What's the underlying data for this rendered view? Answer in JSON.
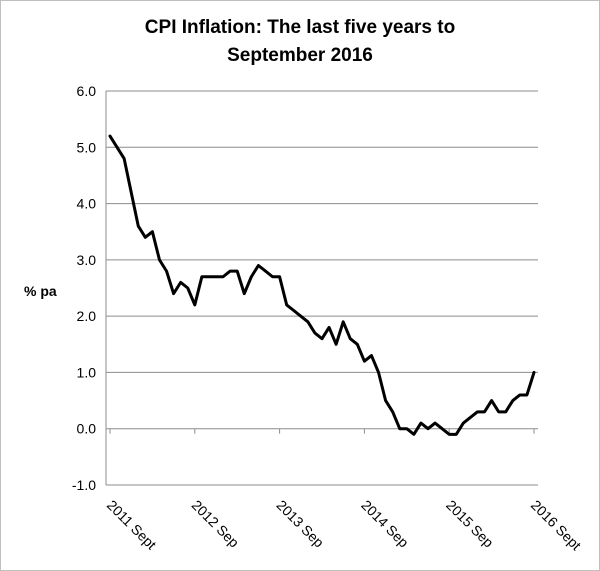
{
  "chart_data": {
    "type": "line",
    "title_line1": "CPI Inflation: The last five years to",
    "title_line2": "September 2016",
    "ylabel": "% pa",
    "xlabel": "",
    "ylim": [
      -1.0,
      6.0
    ],
    "y_ticks": [
      "-1.0",
      "0.0",
      "1.0",
      "2.0",
      "3.0",
      "4.0",
      "5.0",
      "6.0"
    ],
    "x_tick_labels": [
      "2011 Sept",
      "2012 Sep",
      "2013 Sep",
      "2014 Sep",
      "2015 Sep",
      "2016 Sept"
    ],
    "grid": "horizontal",
    "legend": "none",
    "line_color": "#000000",
    "series": [
      {
        "x": [
          "2011-09",
          "2011-10",
          "2011-11",
          "2011-12",
          "2012-01",
          "2012-02",
          "2012-03",
          "2012-04",
          "2012-05",
          "2012-06",
          "2012-07",
          "2012-08",
          "2012-09",
          "2012-10",
          "2012-11",
          "2012-12",
          "2013-01",
          "2013-02",
          "2013-03",
          "2013-04",
          "2013-05",
          "2013-06",
          "2013-07",
          "2013-08",
          "2013-09",
          "2013-10",
          "2013-11",
          "2013-12",
          "2014-01",
          "2014-02",
          "2014-03",
          "2014-04",
          "2014-05",
          "2014-06",
          "2014-07",
          "2014-08",
          "2014-09",
          "2014-10",
          "2014-11",
          "2014-12",
          "2015-01",
          "2015-02",
          "2015-03",
          "2015-04",
          "2015-05",
          "2015-06",
          "2015-07",
          "2015-08",
          "2015-09",
          "2015-10",
          "2015-11",
          "2015-12",
          "2016-01",
          "2016-02",
          "2016-03",
          "2016-04",
          "2016-05",
          "2016-06",
          "2016-07",
          "2016-08",
          "2016-09"
        ],
        "values": [
          5.2,
          5.0,
          4.8,
          4.2,
          3.6,
          3.4,
          3.5,
          3.0,
          2.8,
          2.4,
          2.6,
          2.5,
          2.2,
          2.7,
          2.7,
          2.7,
          2.7,
          2.8,
          2.8,
          2.4,
          2.7,
          2.9,
          2.8,
          2.7,
          2.7,
          2.2,
          2.1,
          2.0,
          1.9,
          1.7,
          1.6,
          1.8,
          1.5,
          1.9,
          1.6,
          1.5,
          1.2,
          1.3,
          1.0,
          0.5,
          0.3,
          0.0,
          0.0,
          -0.1,
          0.1,
          0.0,
          0.1,
          0.0,
          -0.1,
          -0.1,
          0.1,
          0.2,
          0.3,
          0.3,
          0.5,
          0.3,
          0.3,
          0.5,
          0.6,
          0.6,
          1.0
        ]
      }
    ]
  }
}
